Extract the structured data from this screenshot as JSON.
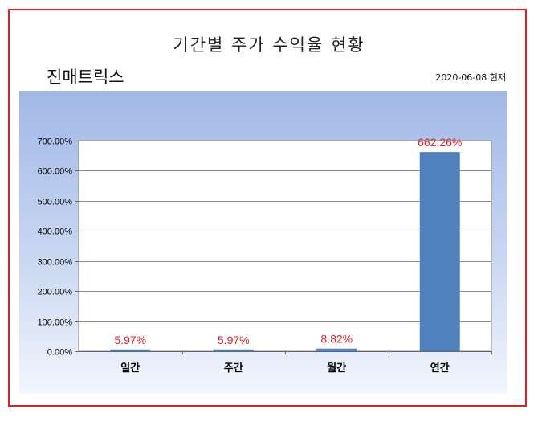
{
  "title": "기간별 주가 수익율 현황",
  "company": "진매트릭스",
  "as_of": "2020-06-08 현재",
  "colors": {
    "border": "#e02020",
    "bar": "#4f81bd",
    "data_label": "#e0242a"
  },
  "chart_data": {
    "type": "bar",
    "categories": [
      "일간",
      "주간",
      "월간",
      "연간"
    ],
    "values": [
      5.97,
      5.97,
      8.82,
      662.26
    ],
    "data_labels": [
      "5.97%",
      "5.97%",
      "8.82%",
      "662.26%"
    ],
    "ylim": [
      0,
      700
    ],
    "yticks": [
      0,
      100,
      200,
      300,
      400,
      500,
      600,
      700
    ],
    "ytick_labels": [
      "0.00%",
      "100.00%",
      "200.00%",
      "300.00%",
      "400.00%",
      "500.00%",
      "600.00%",
      "700.00%"
    ],
    "grid": true,
    "xlabel": "",
    "ylabel": ""
  }
}
